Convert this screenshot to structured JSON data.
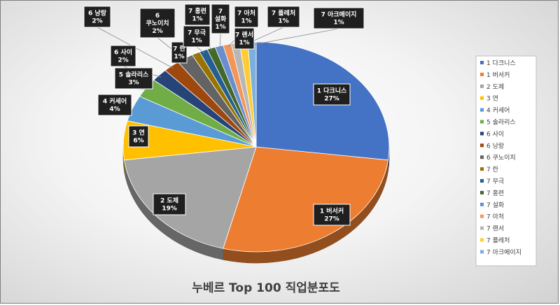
{
  "chart_data": {
    "type": "pie",
    "title": "누베르 Top 100 직업분포도",
    "categories": [
      "1 다크니스",
      "1 버서커",
      "2 도제",
      "3 연",
      "4 커세어",
      "5 솔라리스",
      "6 사이",
      "6 낭랑",
      "6 쿠노이치",
      "7 란",
      "7 무극",
      "7 홍련",
      "7 설화",
      "7 아처",
      "7 랜서",
      "7 플레처",
      "7 아크메이지"
    ],
    "values": [
      27,
      27,
      19,
      6,
      4,
      3,
      2,
      2,
      2,
      1,
      1,
      1,
      1,
      1,
      1,
      1,
      1
    ],
    "percent_labels": [
      "27%",
      "27%",
      "19%",
      "6%",
      "4%",
      "3%",
      "2%",
      "2%",
      "2%",
      "1%",
      "1%",
      "1%",
      "1%",
      "1%",
      "1%",
      "1%",
      "1%"
    ],
    "colors": [
      "#4472C4",
      "#ED7D31",
      "#A5A5A5",
      "#FFC000",
      "#5B9BD5",
      "#70AD47",
      "#264478",
      "#9E480E",
      "#636363",
      "#997300",
      "#255E91",
      "#43682B",
      "#698ED0",
      "#F1975A",
      "#B7B7B7",
      "#FFCD33",
      "#7CAFDD"
    ],
    "legend_position": "right"
  }
}
